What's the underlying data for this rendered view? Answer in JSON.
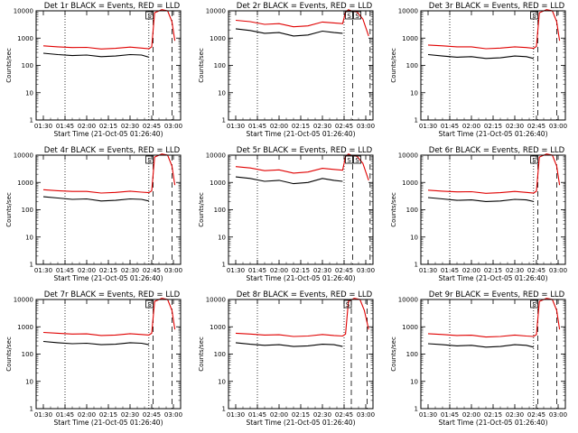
{
  "chart_data": [
    {
      "type": "line",
      "title": "Det 1r BLACK = Events, RED = LLD",
      "xlabel": "Start Time (21-Oct-05 01:26:40)",
      "ylabel": "Counts/sec",
      "yscale": "log",
      "ylim": [
        1,
        10000
      ],
      "xticks": [
        "01:30",
        "01:45",
        "02:00",
        "02:15",
        "02:30",
        "02:45",
        "03:00"
      ],
      "yticks": [
        "1",
        "10",
        "100",
        "1000",
        "10000"
      ],
      "annotations": [
        "S"
      ],
      "series": [
        {
          "color": "#e00000",
          "x": [
            "01:30",
            "01:40",
            "01:50",
            "02:00",
            "02:10",
            "02:20",
            "02:30",
            "02:38",
            "02:43",
            "02:45",
            "02:47",
            "02:52",
            "02:56",
            "02:59",
            "03:01"
          ],
          "y": [
            520,
            480,
            450,
            460,
            400,
            420,
            470,
            430,
            410,
            480,
            8500,
            11000,
            10000,
            4000,
            800
          ]
        },
        {
          "color": "#000000",
          "x": [
            "01:30",
            "01:40",
            "01:50",
            "02:00",
            "02:10",
            "02:20",
            "02:30",
            "02:38",
            "02:43"
          ],
          "y": [
            280,
            250,
            230,
            240,
            210,
            220,
            250,
            240,
            200
          ]
        }
      ],
      "vlines": [
        {
          "x": "01:45",
          "style": "dotted"
        },
        {
          "x": "02:43",
          "style": "dotted"
        },
        {
          "x": "02:46",
          "style": "dashed"
        },
        {
          "x": "02:59",
          "style": "dashed"
        }
      ]
    },
    {
      "type": "line",
      "title": "Det 2r BLACK = Events, RED = LLD",
      "xlabel": "Start Time (21-Oct-05 01:26:40)",
      "ylabel": "Counts/sec",
      "yscale": "log",
      "ylim": [
        1,
        10000
      ],
      "xticks": [
        "01:30",
        "01:45",
        "02:00",
        "02:15",
        "02:30",
        "02:45",
        "03:00"
      ],
      "yticks": [
        "1",
        "10",
        "100",
        "1000",
        "10000"
      ],
      "annotations": [
        "S",
        "S"
      ],
      "series": [
        {
          "color": "#e00000",
          "x": [
            "01:30",
            "01:40",
            "01:50",
            "02:00",
            "02:10",
            "02:20",
            "02:30",
            "02:38",
            "02:44",
            "02:46",
            "02:48",
            "02:50",
            "02:54",
            "02:58",
            "03:02"
          ],
          "y": [
            4500,
            4000,
            3200,
            3400,
            2600,
            2800,
            3900,
            3600,
            3400,
            9000,
            11000,
            10000,
            9000,
            5000,
            1200
          ]
        },
        {
          "color": "#000000",
          "x": [
            "01:30",
            "01:40",
            "01:50",
            "02:00",
            "02:10",
            "02:20",
            "02:30",
            "02:38",
            "02:44"
          ],
          "y": [
            2200,
            1900,
            1500,
            1600,
            1200,
            1300,
            1800,
            1600,
            1500
          ]
        }
      ],
      "vlines": [
        {
          "x": "01:45",
          "style": "dotted"
        },
        {
          "x": "02:45",
          "style": "dotted"
        },
        {
          "x": "02:51",
          "style": "dashed"
        },
        {
          "x": "03:03",
          "style": "dashed"
        }
      ]
    },
    {
      "type": "line",
      "title": "Det 3r BLACK = Events, RED = LLD",
      "xlabel": "Start Time (21-Oct-05 01:26:40)",
      "ylabel": "Counts/sec",
      "yscale": "log",
      "ylim": [
        1,
        10000
      ],
      "xticks": [
        "01:30",
        "01:45",
        "02:00",
        "02:15",
        "02:30",
        "02:45",
        "03:00"
      ],
      "yticks": [
        "1",
        "10",
        "100",
        "1000",
        "10000"
      ],
      "annotations": [
        "S"
      ],
      "series": [
        {
          "color": "#e00000",
          "x": [
            "01:30",
            "01:40",
            "01:50",
            "02:00",
            "02:10",
            "02:20",
            "02:30",
            "02:38",
            "02:43",
            "02:45",
            "02:47",
            "02:52",
            "02:56",
            "02:59",
            "03:01"
          ],
          "y": [
            560,
            520,
            480,
            480,
            410,
            430,
            480,
            450,
            420,
            500,
            8500,
            11000,
            10000,
            4000,
            800
          ]
        },
        {
          "color": "#000000",
          "x": [
            "01:30",
            "01:40",
            "01:50",
            "02:00",
            "02:10",
            "02:20",
            "02:30",
            "02:38",
            "02:43"
          ],
          "y": [
            250,
            220,
            200,
            210,
            180,
            190,
            220,
            210,
            180
          ]
        }
      ],
      "vlines": [
        {
          "x": "01:45",
          "style": "dotted"
        },
        {
          "x": "02:43",
          "style": "dotted"
        },
        {
          "x": "02:46",
          "style": "dashed"
        },
        {
          "x": "02:59",
          "style": "dashed"
        }
      ]
    },
    {
      "type": "line",
      "title": "Det 4r BLACK = Events, RED = LLD",
      "xlabel": "Start Time (21-Oct-05 01:26:40)",
      "ylabel": "Counts/sec",
      "yscale": "log",
      "ylim": [
        1,
        10000
      ],
      "xticks": [
        "01:30",
        "01:45",
        "02:00",
        "02:15",
        "02:30",
        "02:45",
        "03:00"
      ],
      "yticks": [
        "1",
        "10",
        "100",
        "1000",
        "10000"
      ],
      "annotations": [
        "S"
      ],
      "series": [
        {
          "color": "#e00000",
          "x": [
            "01:30",
            "01:40",
            "01:50",
            "02:00",
            "02:10",
            "02:20",
            "02:30",
            "02:38",
            "02:43",
            "02:45",
            "02:47",
            "02:52",
            "02:56",
            "02:59",
            "03:01"
          ],
          "y": [
            540,
            500,
            470,
            470,
            410,
            430,
            480,
            440,
            420,
            490,
            8500,
            11000,
            10000,
            4000,
            800
          ]
        },
        {
          "color": "#000000",
          "x": [
            "01:30",
            "01:40",
            "01:50",
            "02:00",
            "02:10",
            "02:20",
            "02:30",
            "02:38",
            "02:43"
          ],
          "y": [
            300,
            270,
            240,
            250,
            210,
            220,
            250,
            240,
            210
          ]
        }
      ],
      "vlines": [
        {
          "x": "01:45",
          "style": "dotted"
        },
        {
          "x": "02:43",
          "style": "dotted"
        },
        {
          "x": "02:46",
          "style": "dashed"
        },
        {
          "x": "02:59",
          "style": "dashed"
        }
      ]
    },
    {
      "type": "line",
      "title": "Det 5r BLACK = Events, RED = LLD",
      "xlabel": "Start Time (21-Oct-05 01:26:40)",
      "ylabel": "Counts/sec",
      "yscale": "log",
      "ylim": [
        1,
        10000
      ],
      "xticks": [
        "01:30",
        "01:45",
        "02:00",
        "02:15",
        "02:30",
        "02:45",
        "03:00"
      ],
      "yticks": [
        "1",
        "10",
        "100",
        "1000",
        "10000"
      ],
      "annotations": [
        "S",
        "S"
      ],
      "series": [
        {
          "color": "#e00000",
          "x": [
            "01:30",
            "01:40",
            "01:50",
            "02:00",
            "02:10",
            "02:20",
            "02:30",
            "02:38",
            "02:44",
            "02:46",
            "02:48",
            "02:50",
            "02:54",
            "02:58",
            "03:02"
          ],
          "y": [
            3800,
            3400,
            2700,
            2900,
            2200,
            2400,
            3300,
            3000,
            2800,
            9000,
            11000,
            10000,
            9000,
            5000,
            1200
          ]
        },
        {
          "color": "#000000",
          "x": [
            "01:30",
            "01:40",
            "01:50",
            "02:00",
            "02:10",
            "02:20",
            "02:30",
            "02:38",
            "02:44"
          ],
          "y": [
            1600,
            1400,
            1100,
            1200,
            900,
            1000,
            1400,
            1200,
            1100
          ]
        }
      ],
      "vlines": [
        {
          "x": "01:45",
          "style": "dotted"
        },
        {
          "x": "02:45",
          "style": "dotted"
        },
        {
          "x": "02:51",
          "style": "dashed"
        },
        {
          "x": "03:03",
          "style": "dashed"
        }
      ]
    },
    {
      "type": "line",
      "title": "Det 6r BLACK = Events, RED = LLD",
      "xlabel": "Start Time (21-Oct-05 01:26:40)",
      "ylabel": "Counts/sec",
      "yscale": "log",
      "ylim": [
        1,
        10000
      ],
      "xticks": [
        "01:30",
        "01:45",
        "02:00",
        "02:15",
        "02:30",
        "02:45",
        "03:00"
      ],
      "yticks": [
        "1",
        "10",
        "100",
        "1000",
        "10000"
      ],
      "annotations": [
        "S"
      ],
      "series": [
        {
          "color": "#e00000",
          "x": [
            "01:30",
            "01:40",
            "01:50",
            "02:00",
            "02:10",
            "02:20",
            "02:30",
            "02:38",
            "02:43",
            "02:45",
            "02:47",
            "02:52",
            "02:56",
            "02:59",
            "03:01"
          ],
          "y": [
            520,
            480,
            450,
            460,
            400,
            420,
            470,
            430,
            410,
            480,
            8500,
            11000,
            10000,
            4000,
            800
          ]
        },
        {
          "color": "#000000",
          "x": [
            "01:30",
            "01:40",
            "01:50",
            "02:00",
            "02:10",
            "02:20",
            "02:30",
            "02:38",
            "02:43"
          ],
          "y": [
            280,
            250,
            220,
            230,
            200,
            210,
            240,
            230,
            200
          ]
        }
      ],
      "vlines": [
        {
          "x": "01:45",
          "style": "dotted"
        },
        {
          "x": "02:43",
          "style": "dotted"
        },
        {
          "x": "02:46",
          "style": "dashed"
        },
        {
          "x": "02:59",
          "style": "dashed"
        }
      ]
    },
    {
      "type": "line",
      "title": "Det 7r BLACK = Events, RED = LLD",
      "xlabel": "Start Time (21-Oct-05 01:26:40)",
      "ylabel": "Counts/sec",
      "yscale": "log",
      "ylim": [
        1,
        10000
      ],
      "xticks": [
        "01:30",
        "01:45",
        "02:00",
        "02:15",
        "02:30",
        "02:45",
        "03:00"
      ],
      "yticks": [
        "1",
        "10",
        "100",
        "1000",
        "10000"
      ],
      "annotations": [
        "S"
      ],
      "series": [
        {
          "color": "#e00000",
          "x": [
            "01:30",
            "01:40",
            "01:50",
            "02:00",
            "02:10",
            "02:20",
            "02:30",
            "02:38",
            "02:43",
            "02:45",
            "02:47",
            "02:52",
            "02:56",
            "02:59",
            "03:01"
          ],
          "y": [
            620,
            580,
            540,
            550,
            480,
            500,
            560,
            520,
            500,
            580,
            8500,
            11000,
            10000,
            4000,
            800
          ]
        },
        {
          "color": "#000000",
          "x": [
            "01:30",
            "01:40",
            "01:50",
            "02:00",
            "02:10",
            "02:20",
            "02:30",
            "02:38",
            "02:43"
          ],
          "y": [
            290,
            260,
            240,
            250,
            220,
            230,
            260,
            250,
            220
          ]
        }
      ],
      "vlines": [
        {
          "x": "01:45",
          "style": "dotted"
        },
        {
          "x": "02:43",
          "style": "dotted"
        },
        {
          "x": "02:46",
          "style": "dashed"
        },
        {
          "x": "02:59",
          "style": "dashed"
        }
      ]
    },
    {
      "type": "line",
      "title": "Det 8r BLACK = Events, RED = LLD",
      "xlabel": "Start Time (21-Oct-05 01:26:40)",
      "ylabel": "Counts/sec",
      "yscale": "log",
      "ylim": [
        1,
        10000
      ],
      "xticks": [
        "01:30",
        "01:45",
        "02:00",
        "02:15",
        "02:30",
        "02:45",
        "03:00"
      ],
      "yticks": [
        "1",
        "10",
        "100",
        "1000",
        "10000"
      ],
      "annotations": [
        "S"
      ],
      "series": [
        {
          "color": "#e00000",
          "x": [
            "01:30",
            "01:40",
            "01:50",
            "02:00",
            "02:10",
            "02:20",
            "02:30",
            "02:38",
            "02:44",
            "02:46",
            "02:48",
            "02:52",
            "02:56",
            "02:59",
            "03:02"
          ],
          "y": [
            580,
            540,
            500,
            510,
            440,
            460,
            520,
            480,
            460,
            540,
            8500,
            11000,
            10000,
            4000,
            800
          ]
        },
        {
          "color": "#000000",
          "x": [
            "01:30",
            "01:40",
            "01:50",
            "02:00",
            "02:10",
            "02:20",
            "02:30",
            "02:38",
            "02:44"
          ],
          "y": [
            260,
            230,
            210,
            220,
            190,
            200,
            230,
            220,
            190
          ]
        }
      ],
      "vlines": [
        {
          "x": "01:45",
          "style": "dotted"
        },
        {
          "x": "02:45",
          "style": "dotted"
        },
        {
          "x": "02:50",
          "style": "dashed"
        },
        {
          "x": "03:01",
          "style": "dashed"
        }
      ]
    },
    {
      "type": "line",
      "title": "Det 9r BLACK = Events, RED = LLD",
      "xlabel": "Start Time (21-Oct-05 01:26:40)",
      "ylabel": "Counts/sec",
      "yscale": "log",
      "ylim": [
        1,
        10000
      ],
      "xticks": [
        "01:30",
        "01:45",
        "02:00",
        "02:15",
        "02:30",
        "02:45",
        "03:00"
      ],
      "yticks": [
        "1",
        "10",
        "100",
        "1000",
        "10000"
      ],
      "annotations": [
        "S"
      ],
      "series": [
        {
          "color": "#e00000",
          "x": [
            "01:30",
            "01:40",
            "01:50",
            "02:00",
            "02:10",
            "02:20",
            "02:30",
            "02:38",
            "02:43",
            "02:45",
            "02:47",
            "02:52",
            "02:56",
            "02:59",
            "03:01"
          ],
          "y": [
            560,
            520,
            480,
            490,
            420,
            440,
            500,
            460,
            440,
            520,
            8500,
            11000,
            10000,
            4000,
            800
          ]
        },
        {
          "color": "#000000",
          "x": [
            "01:30",
            "01:40",
            "01:50",
            "02:00",
            "02:10",
            "02:20",
            "02:30",
            "02:38",
            "02:43"
          ],
          "y": [
            240,
            220,
            200,
            210,
            180,
            190,
            220,
            210,
            180
          ]
        }
      ],
      "vlines": [
        {
          "x": "01:45",
          "style": "dotted"
        },
        {
          "x": "02:43",
          "style": "dotted"
        },
        {
          "x": "02:46",
          "style": "dashed"
        },
        {
          "x": "02:59",
          "style": "dashed"
        }
      ]
    }
  ]
}
